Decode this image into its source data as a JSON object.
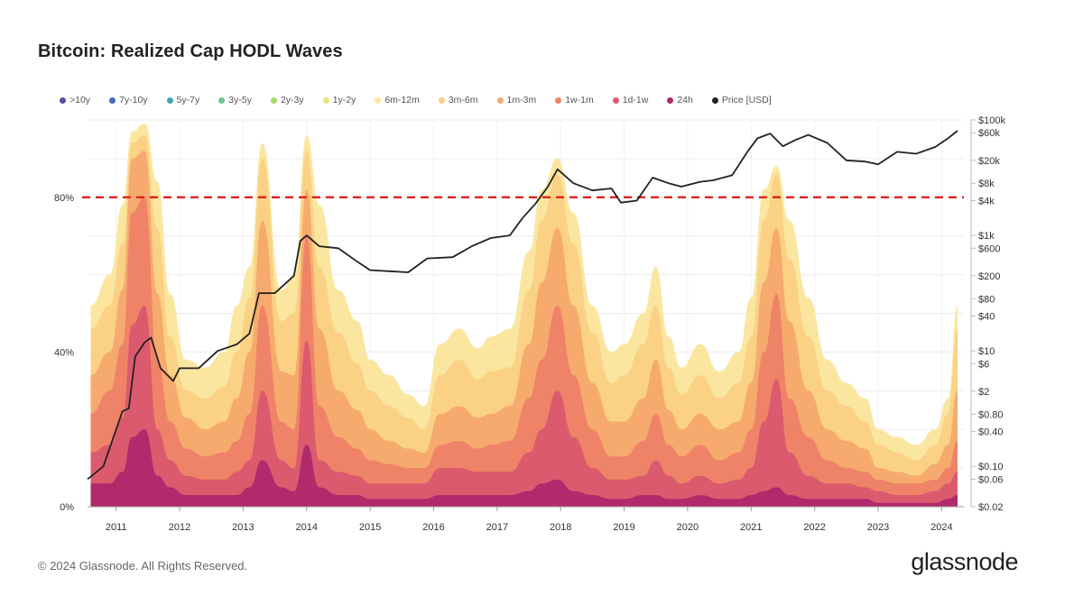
{
  "header": {
    "title": "Bitcoin: Realized Cap HODL Waves"
  },
  "footer": {
    "copyright": "© 2024 Glassnode. All Rights Reserved.",
    "brand": "glassnode"
  },
  "legend": [
    {
      "label": ">10y",
      "color": "#5b4a9e"
    },
    {
      "label": "7y-10y",
      "color": "#3d6fb6"
    },
    {
      "label": "5y-7y",
      "color": "#43a6a6"
    },
    {
      "label": "3y-5y",
      "color": "#6cc487"
    },
    {
      "label": "2y-3y",
      "color": "#a6d96a"
    },
    {
      "label": "1y-2y",
      "color": "#e6e67a"
    },
    {
      "label": "6m-12m",
      "color": "#fbe6a0"
    },
    {
      "label": "3m-6m",
      "color": "#fad185"
    },
    {
      "label": "1m-3m",
      "color": "#f6aa6e"
    },
    {
      "label": "1w-1m",
      "color": "#ef8367"
    },
    {
      "label": "1d-1w",
      "color": "#dc5a6e"
    },
    {
      "label": "24h",
      "color": "#b02a6c"
    },
    {
      "label": "Price [USD]",
      "color": "#222222"
    }
  ],
  "chart_data": {
    "type": "area",
    "title": "Bitcoin: Realized Cap HODL Waves",
    "x_ticks": [
      "2011",
      "2012",
      "2013",
      "2014",
      "2015",
      "2016",
      "2017",
      "2018",
      "2019",
      "2020",
      "2021",
      "2022",
      "2023",
      "2024"
    ],
    "y_left": {
      "ticks": [
        "0%",
        "40%",
        "80%"
      ],
      "range": [
        0,
        100
      ]
    },
    "y_right": {
      "scale": "log",
      "ticks": [
        "$100k",
        "$60k",
        "$20k",
        "$8k",
        "$4k",
        "$1k",
        "$600",
        "$200",
        "$80",
        "$40",
        "$10",
        "$6",
        "$2",
        "$0.80",
        "$0.40",
        "$0.10",
        "$0.06",
        "$0.02"
      ],
      "range": [
        0.02,
        100000
      ]
    },
    "reference_line": {
      "value": 80,
      "style": "dashed",
      "color": "#e0201c"
    },
    "x": [
      2010.6,
      2010.9,
      2011.1,
      2011.25,
      2011.45,
      2011.65,
      2011.85,
      2012.1,
      2012.4,
      2012.7,
      2012.9,
      2013.1,
      2013.3,
      2013.6,
      2013.8,
      2014.0,
      2014.2,
      2014.5,
      2014.8,
      2015.0,
      2015.3,
      2015.6,
      2015.85,
      2016.1,
      2016.4,
      2016.7,
      2016.9,
      2017.2,
      2017.5,
      2017.7,
      2017.95,
      2018.2,
      2018.5,
      2018.8,
      2019.0,
      2019.3,
      2019.5,
      2019.7,
      2019.9,
      2020.2,
      2020.5,
      2020.8,
      2021.0,
      2021.2,
      2021.4,
      2021.6,
      2021.9,
      2022.2,
      2022.5,
      2022.8,
      2023.0,
      2023.3,
      2023.6,
      2023.9,
      2024.1,
      2024.25
    ],
    "series": [
      {
        "name": "24h",
        "color": "#b02a6c",
        "values": [
          6,
          6,
          9,
          18,
          20,
          8,
          5,
          3,
          3,
          3,
          3,
          5,
          12,
          5,
          4,
          16,
          5,
          3,
          3,
          2,
          2,
          2,
          2,
          3,
          3,
          3,
          3,
          3,
          4,
          6,
          7,
          4,
          3,
          2,
          2,
          3,
          3,
          2,
          2,
          3,
          2,
          2,
          3,
          4,
          5,
          3,
          2,
          2,
          2,
          2,
          1,
          1,
          1,
          1,
          2,
          3
        ]
      },
      {
        "name": "1d-1w",
        "color": "#dc5a6e",
        "values": [
          14,
          16,
          23,
          47,
          52,
          20,
          12,
          8,
          7,
          7,
          9,
          12,
          30,
          12,
          10,
          43,
          12,
          9,
          8,
          6,
          6,
          6,
          6,
          10,
          10,
          9,
          9,
          9,
          14,
          20,
          30,
          18,
          10,
          7,
          7,
          8,
          12,
          8,
          6,
          8,
          6,
          7,
          10,
          22,
          33,
          14,
          8,
          6,
          6,
          5,
          4,
          3,
          3,
          4,
          6,
          9
        ]
      },
      {
        "name": "1w-1m",
        "color": "#ef8367",
        "values": [
          24,
          30,
          42,
          76,
          80,
          38,
          22,
          15,
          13,
          14,
          17,
          24,
          52,
          22,
          20,
          70,
          26,
          18,
          15,
          12,
          11,
          10,
          10,
          16,
          17,
          15,
          16,
          17,
          28,
          38,
          52,
          34,
          20,
          13,
          13,
          17,
          24,
          16,
          13,
          16,
          12,
          14,
          20,
          40,
          55,
          28,
          18,
          12,
          10,
          9,
          7,
          6,
          6,
          7,
          10,
          17
        ]
      },
      {
        "name": "1m-3m",
        "color": "#f6aa6e",
        "values": [
          34,
          40,
          56,
          90,
          92,
          55,
          34,
          23,
          20,
          22,
          28,
          40,
          74,
          35,
          34,
          82,
          46,
          30,
          25,
          20,
          17,
          15,
          14,
          24,
          26,
          23,
          24,
          26,
          42,
          58,
          72,
          52,
          32,
          22,
          22,
          28,
          38,
          25,
          20,
          24,
          20,
          22,
          32,
          58,
          72,
          48,
          30,
          20,
          17,
          15,
          10,
          9,
          8,
          11,
          16,
          30
        ]
      },
      {
        "name": "3m-6m",
        "color": "#fad185",
        "values": [
          46,
          52,
          68,
          94,
          96,
          72,
          44,
          30,
          28,
          31,
          40,
          54,
          90,
          48,
          50,
          92,
          62,
          45,
          37,
          30,
          26,
          23,
          20,
          34,
          38,
          33,
          35,
          36,
          56,
          74,
          86,
          68,
          45,
          32,
          34,
          42,
          52,
          36,
          29,
          34,
          28,
          32,
          44,
          74,
          86,
          64,
          44,
          30,
          26,
          22,
          16,
          14,
          12,
          16,
          24,
          46
        ]
      },
      {
        "name": "6m-12m",
        "color": "#fbe6a0",
        "values": [
          52,
          60,
          78,
          97,
          99,
          84,
          55,
          38,
          36,
          40,
          52,
          62,
          94,
          56,
          60,
          96,
          78,
          56,
          48,
          38,
          34,
          29,
          26,
          42,
          46,
          41,
          44,
          46,
          66,
          82,
          90,
          76,
          52,
          40,
          42,
          50,
          62,
          44,
          36,
          42,
          35,
          40,
          54,
          82,
          88,
          74,
          54,
          38,
          32,
          28,
          20,
          18,
          16,
          20,
          28,
          52
        ]
      }
    ],
    "price_usd": {
      "x": [
        2010.55,
        2010.8,
        2010.95,
        2011.1,
        2011.2,
        2011.3,
        2011.45,
        2011.55,
        2011.7,
        2011.9,
        2012.0,
        2012.3,
        2012.6,
        2012.9,
        2013.1,
        2013.25,
        2013.5,
        2013.8,
        2013.9,
        2014.0,
        2014.2,
        2014.5,
        2014.8,
        2015.0,
        2015.3,
        2015.6,
        2015.9,
        2016.3,
        2016.6,
        2016.9,
        2017.2,
        2017.4,
        2017.6,
        2017.8,
        2017.95,
        2018.2,
        2018.5,
        2018.8,
        2018.95,
        2019.2,
        2019.45,
        2019.7,
        2019.9,
        2020.2,
        2020.4,
        2020.7,
        2020.95,
        2021.1,
        2021.3,
        2021.5,
        2021.7,
        2021.9,
        2022.2,
        2022.5,
        2022.8,
        2023.0,
        2023.3,
        2023.6,
        2023.9,
        2024.1,
        2024.25
      ],
      "values": [
        0.06,
        0.1,
        0.3,
        0.9,
        1,
        8,
        14,
        17,
        5,
        3,
        5,
        5,
        10,
        13,
        20,
        100,
        100,
        200,
        800,
        1000,
        650,
        600,
        350,
        250,
        240,
        230,
        400,
        420,
        650,
        900,
        1000,
        2000,
        3500,
        7000,
        14000,
        8000,
        6000,
        6500,
        3700,
        4000,
        10000,
        8000,
        7000,
        8500,
        9000,
        11000,
        29000,
        48000,
        58000,
        35000,
        45000,
        55000,
        40000,
        20000,
        19000,
        17000,
        28000,
        26000,
        34000,
        48000,
        65000
      ]
    }
  }
}
